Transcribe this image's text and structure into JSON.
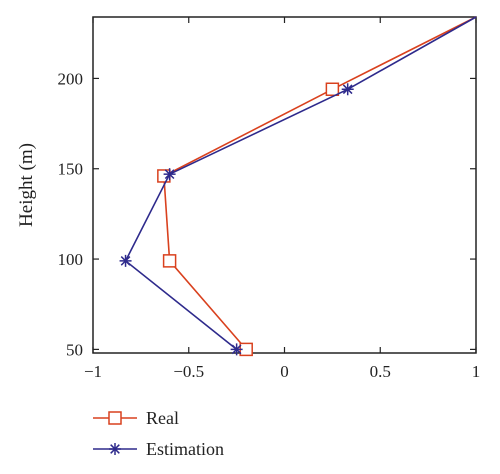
{
  "chart_data": {
    "type": "line",
    "title": "",
    "xlabel": "",
    "ylabel": "Height (m)",
    "xlim": [
      -1,
      1
    ],
    "ylim": [
      48,
      234
    ],
    "xticks": [
      -1,
      -0.5,
      0,
      0.5,
      1
    ],
    "xtick_labels": [
      "−1",
      "−0.5",
      "0",
      "0.5",
      "1"
    ],
    "yticks": [
      50,
      100,
      150,
      200
    ],
    "ytick_labels": [
      "50",
      "100",
      "150",
      "200"
    ],
    "grid": false,
    "legend_position": "below",
    "series": [
      {
        "name": "Real",
        "color": "#d9411e",
        "marker": "square",
        "points": [
          {
            "x": -0.2,
            "y": 50
          },
          {
            "x": -0.6,
            "y": 99
          },
          {
            "x": -0.63,
            "y": 146
          },
          {
            "x": 0.25,
            "y": 194
          },
          {
            "x": 1.0,
            "y": 234
          }
        ]
      },
      {
        "name": "Estimation",
        "color": "#2e2a8c",
        "marker": "asterisk",
        "points": [
          {
            "x": -0.25,
            "y": 50
          },
          {
            "x": -0.83,
            "y": 99
          },
          {
            "x": -0.6,
            "y": 147
          },
          {
            "x": 0.33,
            "y": 194
          },
          {
            "x": 1.0,
            "y": 234
          }
        ]
      }
    ]
  }
}
